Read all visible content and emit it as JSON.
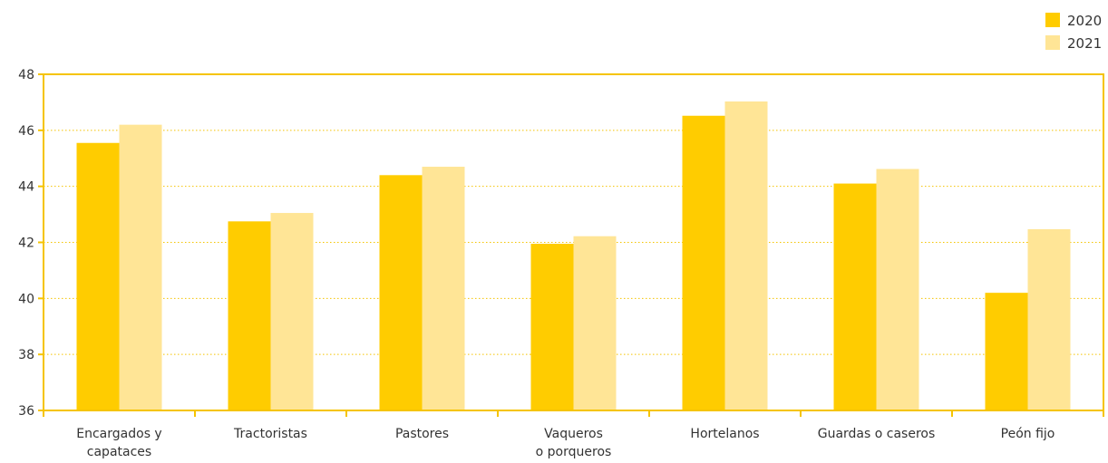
{
  "chart_data": {
    "type": "bar",
    "title": "",
    "xlabel": "",
    "ylabel": "",
    "ylim": [
      36,
      48
    ],
    "yticks": [
      36,
      38,
      40,
      42,
      44,
      46,
      48
    ],
    "grid": "horizontal dotted",
    "legend_position": "top-right",
    "categories": [
      [
        "Encargados y",
        "capataces"
      ],
      [
        "Tractoristas"
      ],
      [
        "Pastores"
      ],
      [
        "Vaqueros",
        "o porqueros"
      ],
      [
        "Hortelanos"
      ],
      [
        "Guardas o caseros"
      ],
      [
        "Peón fijo"
      ]
    ],
    "series": [
      {
        "name": "2020",
        "color": "#ffcc00",
        "values": [
          45.55,
          42.75,
          44.4,
          41.95,
          46.52,
          44.1,
          40.2
        ]
      },
      {
        "name": "2021",
        "color": "#ffe596",
        "values": [
          46.2,
          43.05,
          44.7,
          42.22,
          47.03,
          44.62,
          42.47
        ]
      }
    ]
  },
  "colors": {
    "axis": "#f5c400",
    "grid": "#f5c400"
  }
}
